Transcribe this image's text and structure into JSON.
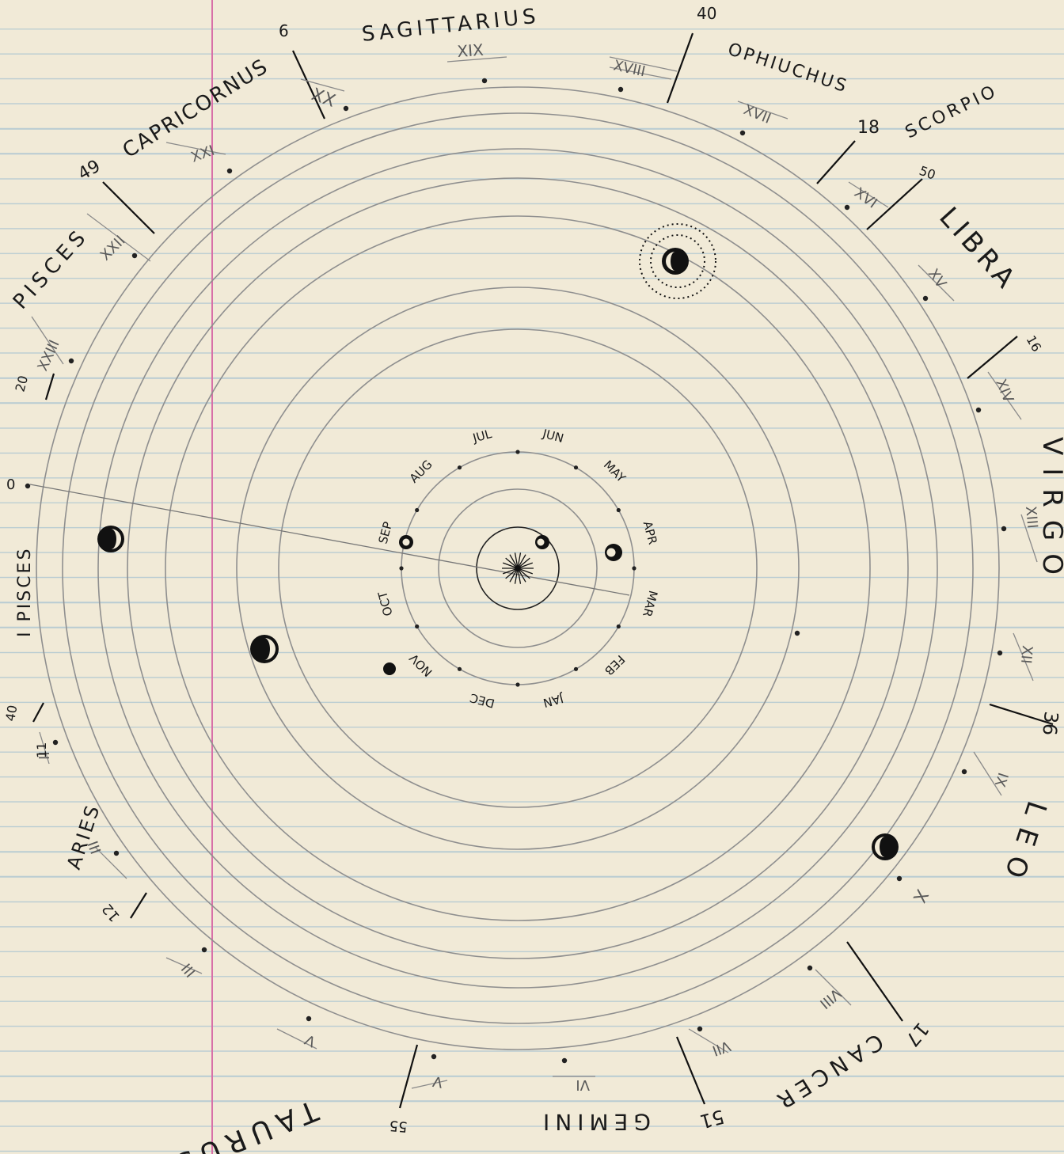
{
  "months": [
    "JAN",
    "FEB",
    "MAR",
    "APR",
    "MAY",
    "JUN",
    "JUL",
    "AUG",
    "SEP",
    "OCT",
    "NOV",
    "DEC"
  ],
  "constellations": [
    {
      "name": "SAGITTARIUS"
    },
    {
      "name": "CAPRICORNUS"
    },
    {
      "name": "PISCES"
    },
    {
      "name": "I PISCES"
    },
    {
      "name": "ARIES"
    },
    {
      "name": "TAURUS"
    },
    {
      "name": "GEMINI"
    },
    {
      "name": "CANCER"
    },
    {
      "name": "LEO"
    },
    {
      "name": "VIRGO"
    },
    {
      "name": "LIBRA"
    },
    {
      "name": "SCORPIO"
    },
    {
      "name": "OPHIUCHUS"
    }
  ],
  "roman_numerals": [
    "XIX",
    "XX",
    "XXI",
    "XXII",
    "XXIII",
    "XVIII",
    "XVII",
    "XVI",
    "XV",
    "XIV",
    "XIII",
    "XII",
    "X",
    "IX",
    "VIII",
    "VII",
    "VI",
    "V",
    "III",
    "II"
  ],
  "boundary_numbers": [
    "40",
    "6",
    "49",
    "20",
    "0",
    "18",
    "50",
    "16",
    "36",
    "17",
    "51",
    "55",
    "12",
    "40",
    "11"
  ],
  "colors": {
    "paper": "#f1ead7",
    "rule": "#b9ccd2",
    "margin": "#d870a8",
    "ink": "#1a1a1a",
    "pencil": "#8a8a8a"
  }
}
